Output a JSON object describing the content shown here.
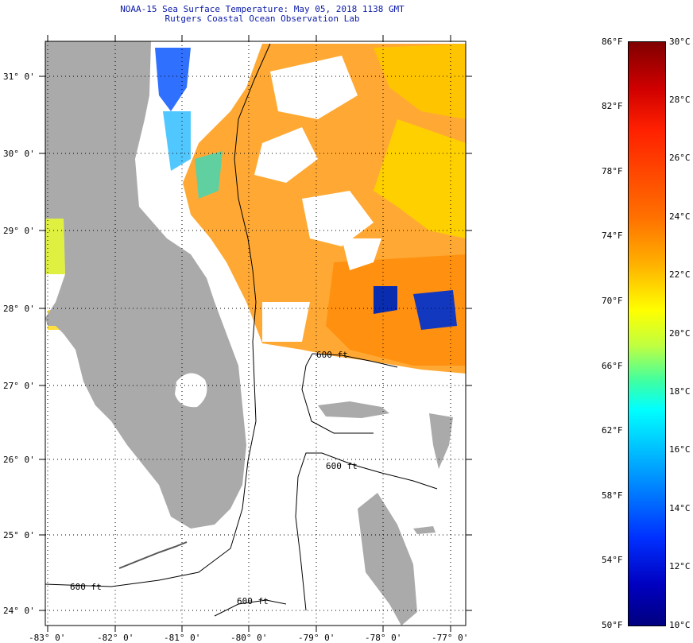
{
  "title": {
    "line1": "NOAA-15 Sea Surface Temperature:  May 05, 2018 1138 GMT",
    "line2": "Rutgers Coastal Ocean Observation Lab"
  },
  "latitude_labels": [
    "31° 0'",
    "30° 0'",
    "29° 0'",
    "28° 0'",
    "27° 0'",
    "26° 0'",
    "25° 0'",
    "24° 0'"
  ],
  "longitude_labels": [
    "-83° 0'",
    "-82° 0'",
    "-81° 0'",
    "-80° 0'",
    "-79° 0'",
    "-78° 0'",
    "-77° 0'"
  ],
  "isobath_label": "600 ft",
  "colorbar": {
    "fahrenheit": [
      "86°F",
      "82°F",
      "78°F",
      "74°F",
      "70°F",
      "66°F",
      "62°F",
      "58°F",
      "54°F",
      "50°F"
    ],
    "celsius": [
      "30°C",
      "28°C",
      "26°C",
      "24°C",
      "22°C",
      "20°C",
      "18°C",
      "16°C",
      "14°C",
      "12°C",
      "10°C"
    ],
    "colors": [
      "#800000",
      "#ff0000",
      "#ff7f00",
      "#ffff00",
      "#80ff80",
      "#00ffff",
      "#0080ff",
      "#0000ff",
      "#000080"
    ]
  },
  "colors": {
    "land": "#aaaaaa",
    "warm_sst": "#ff8c00",
    "cool_sst": "#1040e0"
  }
}
